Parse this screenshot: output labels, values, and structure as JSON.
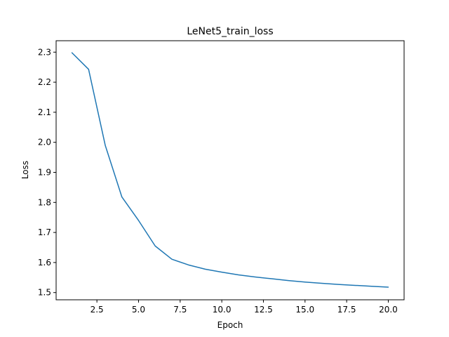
{
  "chart_data": {
    "type": "line",
    "title": "LeNet5_train_loss",
    "xlabel": "Epoch",
    "ylabel": "Loss",
    "xlim": [
      0.05,
      20.95
    ],
    "ylim": [
      1.476,
      2.338
    ],
    "grid": false,
    "x_ticks": [
      2.5,
      5.0,
      7.5,
      10.0,
      12.5,
      15.0,
      17.5,
      20.0
    ],
    "x_tick_labels": [
      "2.5",
      "5.0",
      "7.5",
      "10.0",
      "12.5",
      "15.0",
      "17.5",
      "20.0"
    ],
    "y_ticks": [
      1.5,
      1.6,
      1.7,
      1.8,
      1.9,
      2.0,
      2.1,
      2.2,
      2.3
    ],
    "y_tick_labels": [
      "1.5",
      "1.6",
      "1.7",
      "1.8",
      "1.9",
      "2.0",
      "2.1",
      "2.2",
      "2.3"
    ],
    "series": [
      {
        "color": "#1f77b4",
        "x": [
          1,
          2,
          3,
          4,
          5,
          6,
          7,
          8,
          9,
          10,
          11,
          12,
          13,
          14,
          15,
          16,
          17,
          18,
          19,
          20
        ],
        "values": [
          2.298,
          2.243,
          1.99,
          1.818,
          1.74,
          1.655,
          1.611,
          1.592,
          1.578,
          1.568,
          1.559,
          1.552,
          1.546,
          1.54,
          1.535,
          1.531,
          1.527,
          1.524,
          1.521,
          1.518
        ]
      }
    ]
  }
}
